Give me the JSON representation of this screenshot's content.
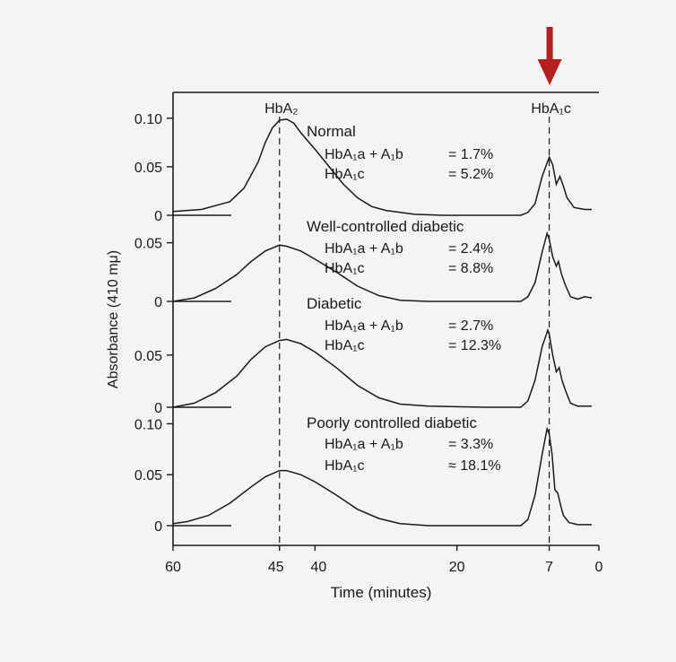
{
  "accent_color": "#b32020",
  "chart_data": {
    "type": "line",
    "xlabel": "Time (minutes)",
    "ylabel": "Absorbance (410 mμ)",
    "x_reversed": true,
    "xlim": [
      60,
      0
    ],
    "x_ticks": [
      {
        "value": 60,
        "label": "60"
      },
      {
        "value": 45,
        "label": "45"
      },
      {
        "value": 40,
        "label": "40"
      },
      {
        "value": 20,
        "label": "20"
      },
      {
        "value": 7,
        "label": "7"
      },
      {
        "value": 0,
        "label": "0"
      }
    ],
    "reference_lines": [
      {
        "x": 45,
        "label": "HbA₂"
      },
      {
        "x": 7,
        "label": "HbA₁c",
        "arrow": true,
        "arrow_color": "#b32020"
      }
    ],
    "panels": [
      {
        "title": "Normal",
        "ylim": [
          0,
          0.11
        ],
        "y_ticks": [
          {
            "value": 0,
            "label": "0"
          },
          {
            "value": 0.05,
            "label": "0.05"
          },
          {
            "value": 0.1,
            "label": "0.10"
          }
        ],
        "annotations": [
          {
            "name": "HbA₁a + A₁b",
            "value": "= 1.7%"
          },
          {
            "name": "HbA₁c",
            "value": "= 5.2%"
          }
        ],
        "points": [
          [
            60,
            0.004
          ],
          [
            56,
            0.006
          ],
          [
            52,
            0.014
          ],
          [
            50,
            0.028
          ],
          [
            48,
            0.055
          ],
          [
            47,
            0.075
          ],
          [
            46,
            0.09
          ],
          [
            45,
            0.098
          ],
          [
            44,
            0.099
          ],
          [
            43,
            0.095
          ],
          [
            42,
            0.085
          ],
          [
            40,
            0.068
          ],
          [
            38,
            0.05
          ],
          [
            36,
            0.032
          ],
          [
            34,
            0.018
          ],
          [
            32,
            0.009
          ],
          [
            30,
            0.005
          ],
          [
            26,
            0.001
          ],
          [
            22,
            0.0
          ],
          [
            16,
            0.0
          ],
          [
            11,
            0.0
          ],
          [
            10,
            0.003
          ],
          [
            9,
            0.012
          ],
          [
            8,
            0.04
          ],
          [
            7,
            0.06
          ],
          [
            6.5,
            0.052
          ],
          [
            6,
            0.032
          ],
          [
            5.5,
            0.04
          ],
          [
            5,
            0.03
          ],
          [
            4.5,
            0.018
          ],
          [
            3.5,
            0.008
          ],
          [
            2,
            0.006
          ],
          [
            1,
            0.006
          ]
        ]
      },
      {
        "title": "Well-controlled diabetic",
        "ylim": [
          0,
          0.065
        ],
        "y_ticks": [
          {
            "value": 0,
            "label": "0"
          },
          {
            "value": 0.05,
            "label": "0.05"
          }
        ],
        "annotations": [
          {
            "name": "HbA₁a + A₁b",
            "value": "= 2.4%"
          },
          {
            "name": "HbA₁c",
            "value": "= 8.8%"
          }
        ],
        "points": [
          [
            60,
            0.0
          ],
          [
            57,
            0.003
          ],
          [
            54,
            0.011
          ],
          [
            51,
            0.023
          ],
          [
            49,
            0.034
          ],
          [
            47,
            0.043
          ],
          [
            45,
            0.048
          ],
          [
            44,
            0.047
          ],
          [
            42,
            0.043
          ],
          [
            40,
            0.036
          ],
          [
            37,
            0.025
          ],
          [
            34,
            0.013
          ],
          [
            31,
            0.005
          ],
          [
            28,
            0.001
          ],
          [
            24,
            0.0
          ],
          [
            16,
            0.0
          ],
          [
            11,
            0.0
          ],
          [
            10,
            0.004
          ],
          [
            9,
            0.016
          ],
          [
            8,
            0.042
          ],
          [
            7.3,
            0.058
          ],
          [
            7,
            0.053
          ],
          [
            6.5,
            0.038
          ],
          [
            6,
            0.03
          ],
          [
            5.7,
            0.034
          ],
          [
            5.3,
            0.024
          ],
          [
            4.8,
            0.015
          ],
          [
            4,
            0.004
          ],
          [
            3,
            0.002
          ],
          [
            2,
            0.004
          ],
          [
            1,
            0.003
          ]
        ]
      },
      {
        "title": "Diabetic",
        "ylim": [
          0,
          0.08
        ],
        "y_ticks": [
          {
            "value": 0,
            "label": "0"
          },
          {
            "value": 0.05,
            "label": "0.05"
          }
        ],
        "annotations": [
          {
            "name": "HbA₁a + A₁b",
            "value": "= 2.7%"
          },
          {
            "name": "HbA₁c",
            "value": "= 12.3%"
          }
        ],
        "points": [
          [
            60,
            0.0
          ],
          [
            57,
            0.004
          ],
          [
            54,
            0.014
          ],
          [
            51,
            0.03
          ],
          [
            49,
            0.046
          ],
          [
            47,
            0.058
          ],
          [
            45,
            0.064
          ],
          [
            44,
            0.065
          ],
          [
            42,
            0.061
          ],
          [
            40,
            0.053
          ],
          [
            37,
            0.038
          ],
          [
            34,
            0.021
          ],
          [
            31,
            0.009
          ],
          [
            28,
            0.003
          ],
          [
            24,
            0.001
          ],
          [
            16,
            0.0
          ],
          [
            11,
            0.0
          ],
          [
            10,
            0.006
          ],
          [
            9,
            0.026
          ],
          [
            8,
            0.058
          ],
          [
            7.2,
            0.074
          ],
          [
            7,
            0.07
          ],
          [
            6.5,
            0.05
          ],
          [
            6,
            0.034
          ],
          [
            5.6,
            0.038
          ],
          [
            5.2,
            0.026
          ],
          [
            4.6,
            0.014
          ],
          [
            4,
            0.004
          ],
          [
            3,
            0.001
          ],
          [
            2,
            0.001
          ],
          [
            1,
            0.001
          ]
        ]
      },
      {
        "title": "Poorly controlled diabetic",
        "ylim": [
          0,
          0.11
        ],
        "y_ticks": [
          {
            "value": 0,
            "label": "0"
          },
          {
            "value": 0.05,
            "label": "0.05"
          },
          {
            "value": 0.1,
            "label": "0.10"
          }
        ],
        "annotations": [
          {
            "name": "HbA₁a + A₁b",
            "value": "= 3.3%"
          },
          {
            "name": "HbA₁c",
            "value": "≈ 18.1%"
          }
        ],
        "points": [
          [
            60,
            0.002
          ],
          [
            58,
            0.004
          ],
          [
            55,
            0.01
          ],
          [
            52,
            0.022
          ],
          [
            49,
            0.038
          ],
          [
            47,
            0.048
          ],
          [
            45,
            0.054
          ],
          [
            44,
            0.054
          ],
          [
            42,
            0.05
          ],
          [
            40,
            0.043
          ],
          [
            37,
            0.03
          ],
          [
            34,
            0.016
          ],
          [
            31,
            0.007
          ],
          [
            28,
            0.002
          ],
          [
            24,
            0.0
          ],
          [
            16,
            0.0
          ],
          [
            11,
            0.0
          ],
          [
            10,
            0.006
          ],
          [
            9,
            0.03
          ],
          [
            8,
            0.07
          ],
          [
            7.3,
            0.095
          ],
          [
            7,
            0.09
          ],
          [
            6.6,
            0.07
          ],
          [
            6.2,
            0.035
          ],
          [
            5.8,
            0.032
          ],
          [
            5.4,
            0.02
          ],
          [
            5,
            0.01
          ],
          [
            4.2,
            0.003
          ],
          [
            3,
            0.001
          ],
          [
            1,
            0.001
          ]
        ]
      }
    ]
  }
}
